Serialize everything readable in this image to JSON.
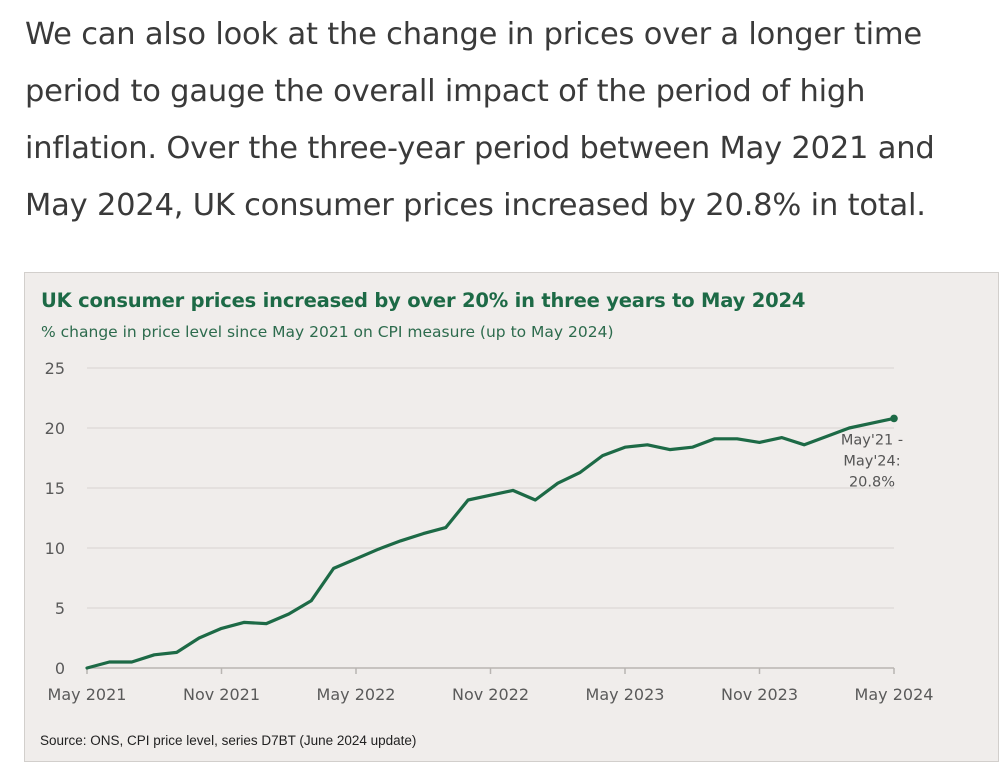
{
  "article": {
    "paragraph": "We can also look at the change in prices over a longer time period to gauge the overall impact of the period of high inflation. Over the three-year period between May 2021 and May 2024, UK consumer prices increased by 20.8% in total."
  },
  "colors": {
    "line": "#1d6a46",
    "title": "#1d6a46",
    "panel_bg": "#f0edeb",
    "grid": "#dcd8d5"
  },
  "chart_data": {
    "type": "line",
    "title": "UK consumer prices increased by over 20% in three years to May 2024",
    "subtitle": "% change in price level since May 2021 on CPI measure (up to May 2024)",
    "source": "Source: ONS, CPI price level, series D7BT (June 2024 update)",
    "xlabel": "",
    "ylabel": "",
    "ylim": [
      0,
      25
    ],
    "yticks": [
      0,
      5,
      10,
      15,
      20,
      25
    ],
    "xticks": [
      "May 2021",
      "Nov 2021",
      "May 2022",
      "Nov 2022",
      "May 2023",
      "Nov 2023",
      "May 2024"
    ],
    "grid": true,
    "legend": "none",
    "annotation": {
      "lines": [
        "May'21 -",
        "May'24:",
        "20.8%"
      ],
      "at": "May 2024"
    },
    "x": [
      "May 2021",
      "Jun 2021",
      "Jul 2021",
      "Aug 2021",
      "Sep 2021",
      "Oct 2021",
      "Nov 2021",
      "Dec 2021",
      "Jan 2022",
      "Feb 2022",
      "Mar 2022",
      "Apr 2022",
      "May 2022",
      "Jun 2022",
      "Jul 2022",
      "Aug 2022",
      "Sep 2022",
      "Oct 2022",
      "Nov 2022",
      "Dec 2022",
      "Jan 2023",
      "Feb 2023",
      "Mar 2023",
      "Apr 2023",
      "May 2023",
      "Jun 2023",
      "Jul 2023",
      "Aug 2023",
      "Sep 2023",
      "Oct 2023",
      "Nov 2023",
      "Dec 2023",
      "Jan 2024",
      "Feb 2024",
      "Mar 2024",
      "Apr 2024",
      "May 2024"
    ],
    "series": [
      {
        "name": "% change in price level since May 2021",
        "values": [
          0,
          0.5,
          0.5,
          1.1,
          1.3,
          2.5,
          3.3,
          3.8,
          3.7,
          4.5,
          5.6,
          8.3,
          9.1,
          9.9,
          10.6,
          11.2,
          11.7,
          14.0,
          14.4,
          14.8,
          14.0,
          15.4,
          16.3,
          17.7,
          18.4,
          18.6,
          18.2,
          18.4,
          19.1,
          19.1,
          18.8,
          19.2,
          18.6,
          19.3,
          20.0,
          20.4,
          20.8
        ]
      }
    ]
  }
}
